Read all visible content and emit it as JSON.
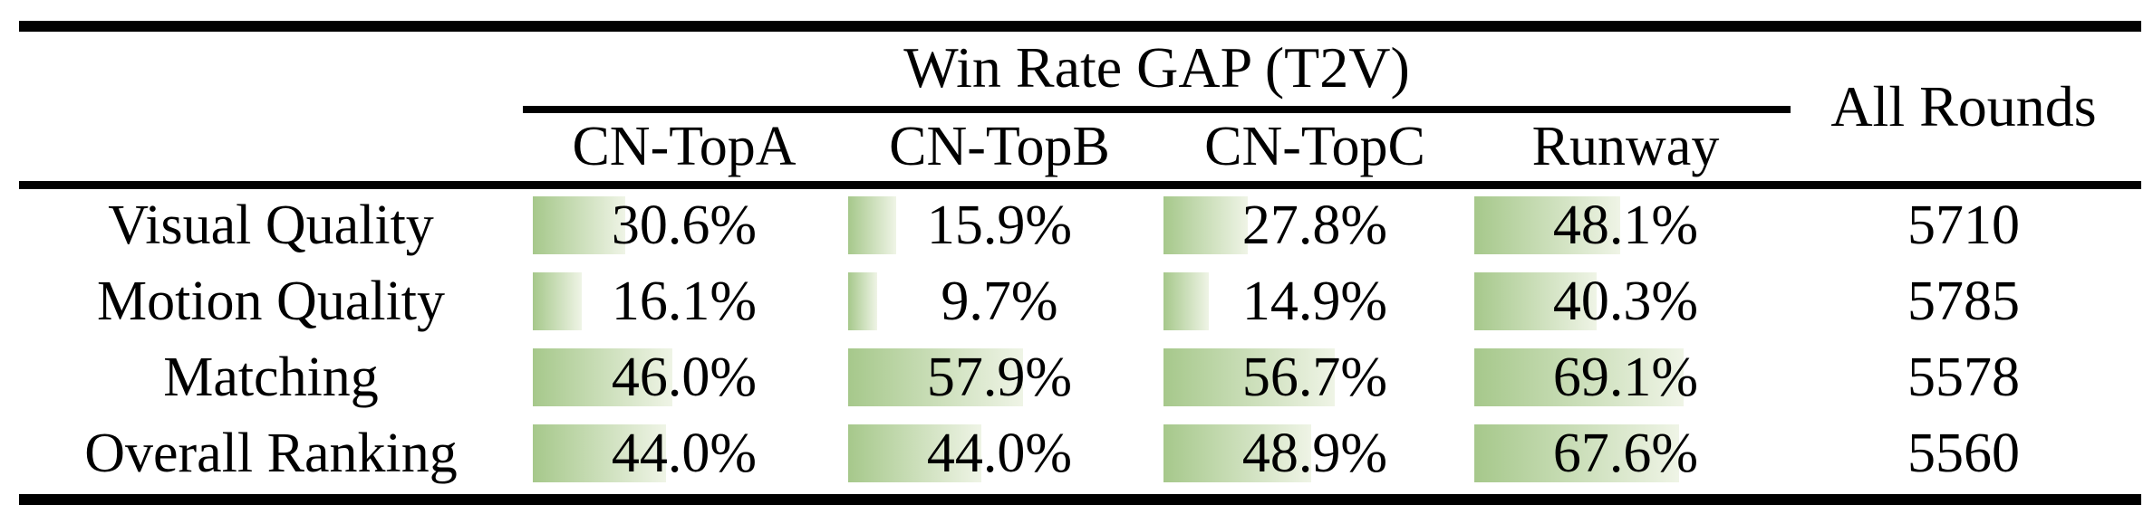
{
  "table": {
    "title": "Win Rate GAP (T2V)",
    "all_rounds_header": "All Rounds",
    "columns": [
      "CN-TopA",
      "CN-TopB",
      "CN-TopC",
      "Runway"
    ],
    "rows": [
      {
        "label": "Visual Quality",
        "cells": [
          {
            "text": "30.6%",
            "value": 30.6
          },
          {
            "text": "15.9%",
            "value": 15.9
          },
          {
            "text": "27.8%",
            "value": 27.8
          },
          {
            "text": "48.1%",
            "value": 48.1
          }
        ],
        "all_rounds": "5710"
      },
      {
        "label": "Motion Quality",
        "cells": [
          {
            "text": "16.1%",
            "value": 16.1
          },
          {
            "text": "9.7%",
            "value": 9.7
          },
          {
            "text": "14.9%",
            "value": 14.9
          },
          {
            "text": "40.3%",
            "value": 40.3
          }
        ],
        "all_rounds": "5785"
      },
      {
        "label": "Matching",
        "cells": [
          {
            "text": "46.0%",
            "value": 46.0
          },
          {
            "text": "57.9%",
            "value": 57.9
          },
          {
            "text": "56.7%",
            "value": 56.7
          },
          {
            "text": "69.1%",
            "value": 69.1
          }
        ],
        "all_rounds": "5578"
      },
      {
        "label": "Overall Ranking",
        "cells": [
          {
            "text": "44.0%",
            "value": 44.0
          },
          {
            "text": "44.0%",
            "value": 44.0
          },
          {
            "text": "48.9%",
            "value": 48.9
          },
          {
            "text": "67.6%",
            "value": 67.6
          }
        ],
        "all_rounds": "5560"
      }
    ]
  },
  "colors": {
    "bar_gradient_start": "#a6c88b",
    "bar_gradient_end": "#eff4e6",
    "rule_color": "#000000"
  },
  "chart_data": {
    "type": "table",
    "title": "Win Rate GAP (T2V)",
    "columns": [
      "CN-TopA",
      "CN-TopB",
      "CN-TopC",
      "Runway",
      "All Rounds"
    ],
    "row_labels": [
      "Visual Quality",
      "Motion Quality",
      "Matching",
      "Overall Ranking"
    ],
    "series": [
      {
        "name": "Visual Quality",
        "values": [
          30.6,
          15.9,
          27.8,
          48.1
        ],
        "all_rounds": 5710
      },
      {
        "name": "Motion Quality",
        "values": [
          16.1,
          9.7,
          14.9,
          40.3
        ],
        "all_rounds": 5785
      },
      {
        "name": "Matching",
        "values": [
          46.0,
          57.9,
          56.7,
          69.1
        ],
        "all_rounds": 5578
      },
      {
        "name": "Overall Ranking",
        "values": [
          44.0,
          44.0,
          48.9,
          67.6
        ],
        "all_rounds": 5560
      }
    ],
    "value_unit": "%",
    "bar_scale_max": 100,
    "notes": "green data bars behind percentages, length proportional to value"
  }
}
